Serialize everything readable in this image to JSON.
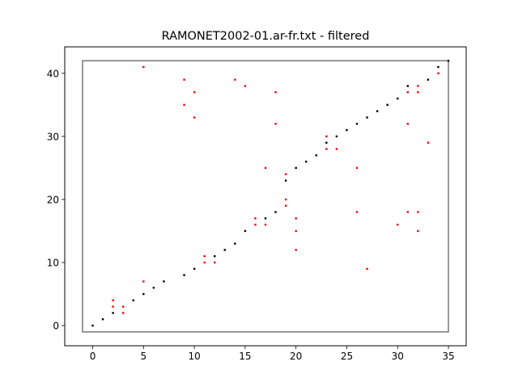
{
  "chart_data": {
    "type": "scatter",
    "title": "RAMONET2002-01.ar-fr.txt - filtered",
    "xlabel": "",
    "ylabel": "",
    "xlim": [
      -2.75,
      36.75
    ],
    "ylim": [
      -3.2,
      44.2
    ],
    "xticks": [
      0,
      5,
      10,
      15,
      20,
      25,
      30,
      35
    ],
    "yticks": [
      0,
      10,
      20,
      30,
      40
    ],
    "grid": false,
    "legend": "none",
    "box": {
      "x0": -1,
      "y0": -1,
      "x1": 35,
      "y1": 42,
      "color": "#808080"
    },
    "series": [
      {
        "color": "#000000",
        "points": [
          [
            0,
            0
          ],
          [
            1,
            1
          ],
          [
            2,
            2
          ],
          [
            4,
            4
          ],
          [
            5,
            5
          ],
          [
            6,
            6
          ],
          [
            7,
            7
          ],
          [
            9,
            8
          ],
          [
            10,
            9
          ],
          [
            12,
            11
          ],
          [
            13,
            12
          ],
          [
            14,
            13
          ],
          [
            15,
            15
          ],
          [
            17,
            17
          ],
          [
            18,
            18
          ],
          [
            19,
            23
          ],
          [
            20,
            25
          ],
          [
            21,
            26
          ],
          [
            22,
            27
          ],
          [
            23,
            29
          ],
          [
            24,
            30
          ],
          [
            25,
            31
          ],
          [
            26,
            32
          ],
          [
            27,
            33
          ],
          [
            28,
            34
          ],
          [
            29,
            35
          ],
          [
            30,
            36
          ],
          [
            31,
            38
          ],
          [
            33,
            39
          ],
          [
            34,
            41
          ],
          [
            35,
            42
          ]
        ]
      },
      {
        "color": "#ff0000",
        "points": [
          [
            2,
            3
          ],
          [
            2,
            4
          ],
          [
            3,
            2
          ],
          [
            3,
            3
          ],
          [
            5,
            7
          ],
          [
            5,
            41
          ],
          [
            9,
            35
          ],
          [
            9,
            39
          ],
          [
            10,
            33
          ],
          [
            10,
            37
          ],
          [
            11,
            10
          ],
          [
            11,
            11
          ],
          [
            12,
            10
          ],
          [
            14,
            39
          ],
          [
            15,
            38
          ],
          [
            16,
            16
          ],
          [
            16,
            17
          ],
          [
            17,
            16
          ],
          [
            17,
            25
          ],
          [
            18,
            32
          ],
          [
            18,
            37
          ],
          [
            19,
            19
          ],
          [
            19,
            20
          ],
          [
            19,
            24
          ],
          [
            20,
            12
          ],
          [
            20,
            15
          ],
          [
            20,
            17
          ],
          [
            23,
            28
          ],
          [
            23,
            30
          ],
          [
            24,
            28
          ],
          [
            26,
            18
          ],
          [
            26,
            25
          ],
          [
            27,
            9
          ],
          [
            30,
            16
          ],
          [
            31,
            18
          ],
          [
            31,
            32
          ],
          [
            31,
            37
          ],
          [
            32,
            15
          ],
          [
            32,
            18
          ],
          [
            32,
            37
          ],
          [
            32,
            38
          ],
          [
            33,
            29
          ],
          [
            34,
            40
          ]
        ]
      }
    ]
  }
}
